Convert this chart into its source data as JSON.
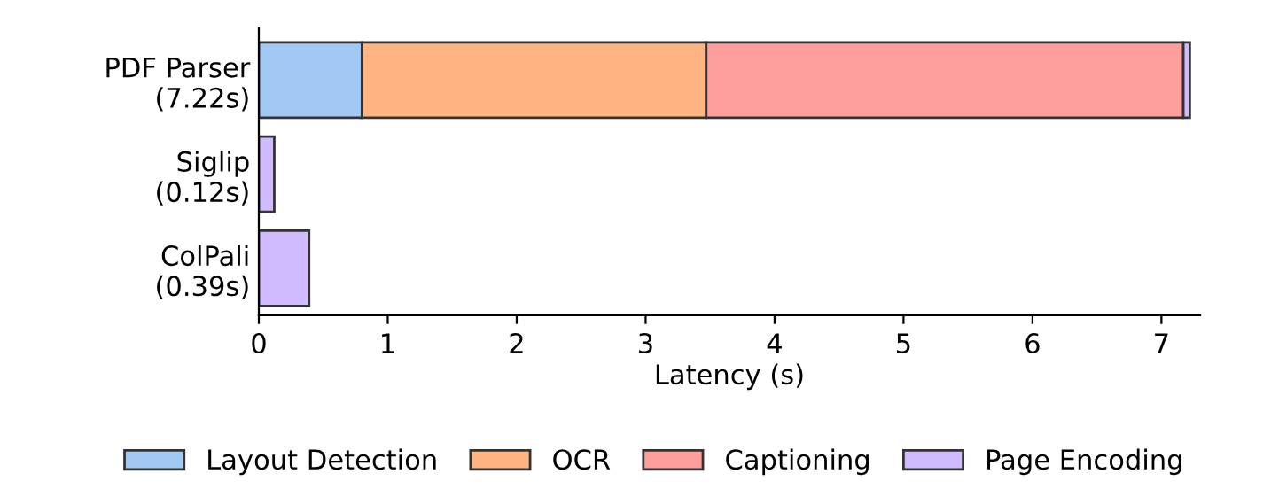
{
  "chart_data": {
    "type": "bar",
    "orientation": "horizontal",
    "stacked": true,
    "xlabel": "Latency (s)",
    "categories": [
      "PDF Parser\n(7.22s)",
      "Siglip\n(0.12s)",
      "ColPali\n(0.39s)"
    ],
    "series": [
      {
        "name": "Layout Detection",
        "color": "#a1c9f4",
        "values": [
          0.8,
          null,
          null
        ]
      },
      {
        "name": "OCR",
        "color": "#ffb482",
        "values": [
          2.67,
          null,
          null
        ]
      },
      {
        "name": "Captioning",
        "color": "#ff9f9b",
        "values": [
          3.7,
          null,
          null
        ]
      },
      {
        "name": "Page Encoding",
        "color": "#d0bbff",
        "values": [
          0.05,
          0.12,
          0.39
        ]
      }
    ],
    "xlim": [
      0,
      7.3
    ],
    "xticks": [
      0,
      1,
      2,
      3,
      4,
      5,
      6,
      7
    ],
    "grid": false,
    "legend": "bottom"
  }
}
